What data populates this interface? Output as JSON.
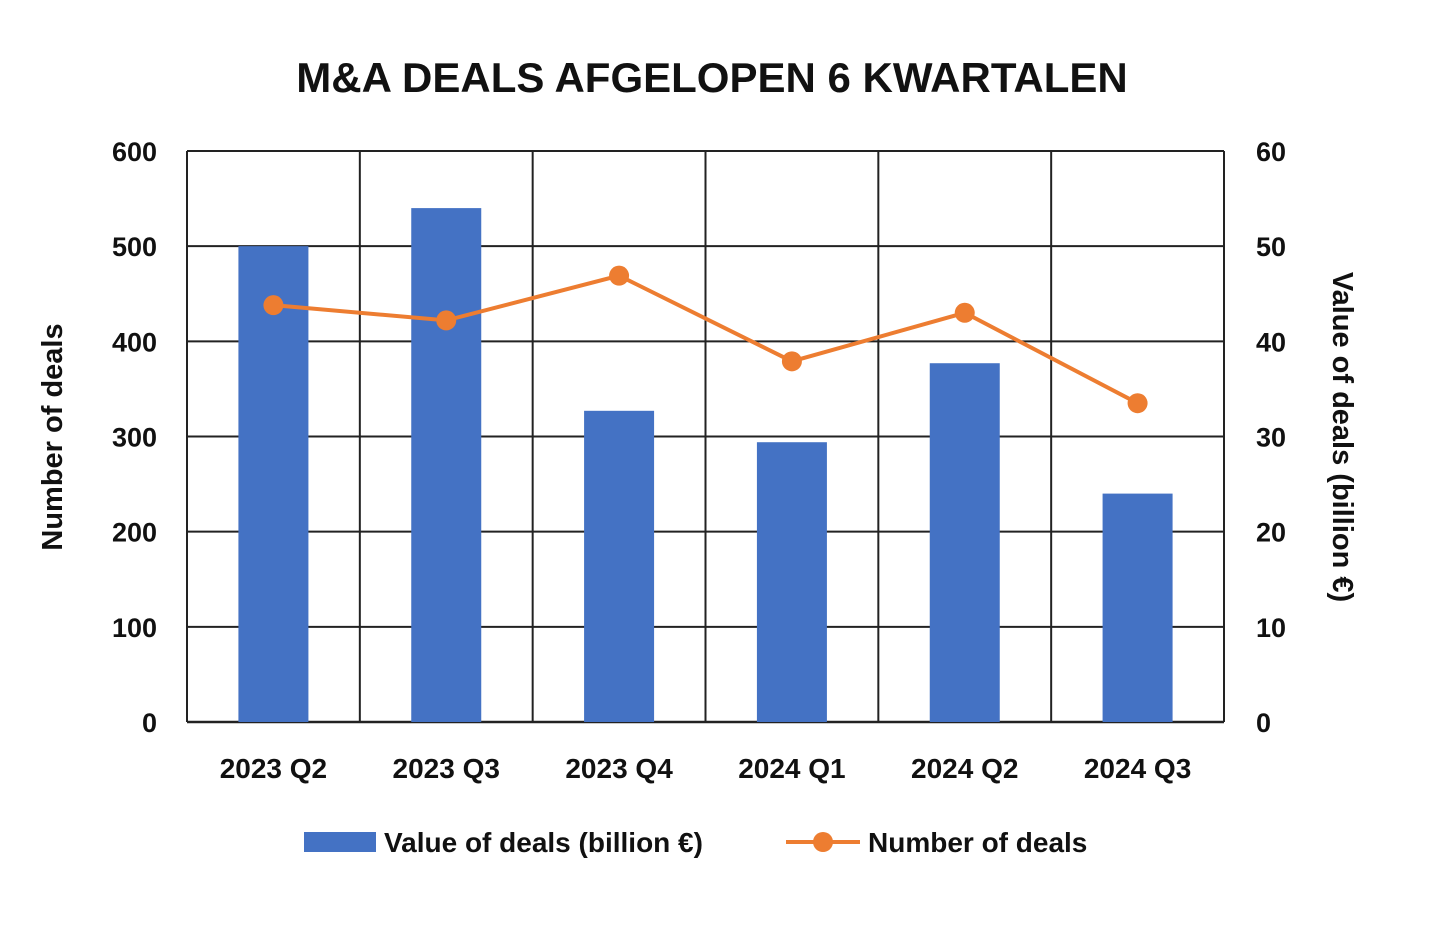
{
  "chart_data": {
    "type": "bar+line",
    "title": "M&A DEALS AFGELOPEN 6 KWARTALEN",
    "categories": [
      "2023 Q2",
      "2023 Q3",
      "2023 Q4",
      "2024 Q1",
      "2024 Q2",
      "2024 Q3"
    ],
    "series": [
      {
        "name": "Value of deals (billion €)",
        "type": "bar",
        "axis": "right",
        "color": "#4472C4",
        "values": [
          50.0,
          54.0,
          32.7,
          29.4,
          37.7,
          24.0
        ]
      },
      {
        "name": "Number of deals",
        "type": "line",
        "axis": "left",
        "color": "#ED7D31",
        "values": [
          438,
          422,
          469,
          379,
          430,
          335
        ]
      }
    ],
    "ylabel": "Number of deals",
    "ylim": [
      0,
      600
    ],
    "yticks": [
      "0",
      "100",
      "200",
      "300",
      "400",
      "500",
      "600"
    ],
    "y2label": "Value of deals (billion €)",
    "y2lim": [
      0,
      60
    ],
    "y2ticks": [
      "0",
      "10",
      "20",
      "30",
      "40",
      "50",
      "60"
    ],
    "grid": true,
    "legend": "bottom"
  }
}
